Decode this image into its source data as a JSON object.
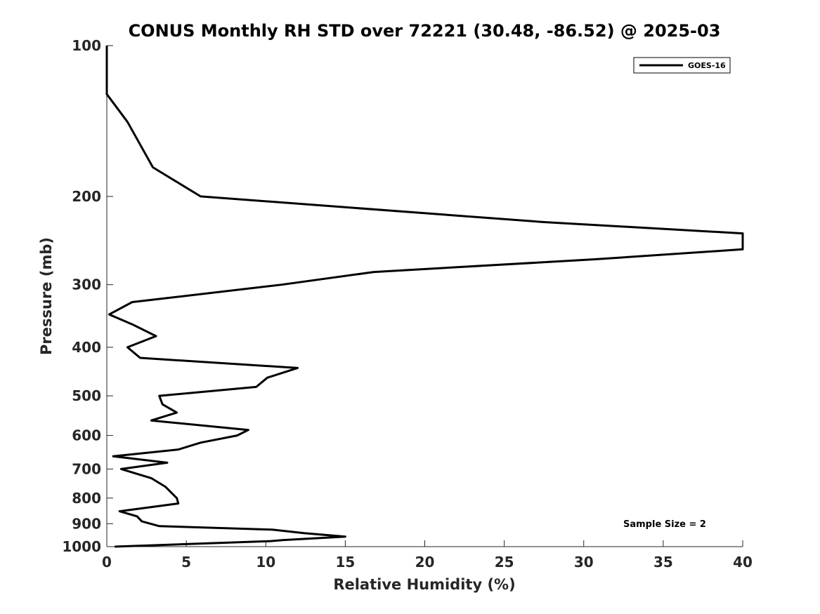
{
  "chart_data": {
    "type": "line",
    "title": "CONUS Monthly RH STD over 72221 (30.48, -86.52) @ 2025-03",
    "xlabel": "Relative Humidity (%)",
    "ylabel": "Pressure (mb)",
    "xlim": [
      0,
      40
    ],
    "ylim": [
      100,
      1000
    ],
    "y_scale": "log",
    "y_reversed": true,
    "xticks": [
      0,
      5,
      10,
      15,
      20,
      25,
      30,
      35,
      40
    ],
    "yticks": [
      100,
      200,
      300,
      400,
      500,
      600,
      700,
      800,
      900,
      1000
    ],
    "grid": false,
    "legend": {
      "placement": "top-right",
      "entries": [
        "GOES-16"
      ]
    },
    "annotation": "Sample Size = 2",
    "series": [
      {
        "name": "GOES-16",
        "color": "#000000",
        "points": [
          [
            0,
            100
          ],
          [
            0,
            125
          ],
          [
            1.3,
            142
          ],
          [
            2.9,
            175
          ],
          [
            5.9,
            200
          ],
          [
            27.5,
            225
          ],
          [
            40,
            237
          ],
          [
            40,
            255
          ],
          [
            30.7,
            267
          ],
          [
            16.8,
            283
          ],
          [
            11.0,
            300
          ],
          [
            1.6,
            325
          ],
          [
            0.15,
            344
          ],
          [
            1.6,
            360
          ],
          [
            3.1,
            380
          ],
          [
            1.3,
            400
          ],
          [
            2.1,
            420
          ],
          [
            12.0,
            440
          ],
          [
            10.1,
            460
          ],
          [
            9.4,
            480
          ],
          [
            3.3,
            500
          ],
          [
            3.5,
            520
          ],
          [
            4.4,
            540
          ],
          [
            2.8,
            560
          ],
          [
            8.9,
            585
          ],
          [
            8.2,
            600
          ],
          [
            5.9,
            620
          ],
          [
            4.5,
            640
          ],
          [
            0.4,
            660
          ],
          [
            3.8,
            680
          ],
          [
            0.9,
            700
          ],
          [
            2.8,
            730
          ],
          [
            3.7,
            760
          ],
          [
            4.4,
            800
          ],
          [
            4.5,
            820
          ],
          [
            0.8,
            850
          ],
          [
            1.9,
            870
          ],
          [
            2.2,
            890
          ],
          [
            3.3,
            910
          ],
          [
            10.4,
            925
          ],
          [
            12.4,
            940
          ],
          [
            15.0,
            955
          ],
          [
            11.1,
            970
          ],
          [
            10.3,
            975
          ],
          [
            0.5,
            1000
          ]
        ]
      }
    ]
  }
}
